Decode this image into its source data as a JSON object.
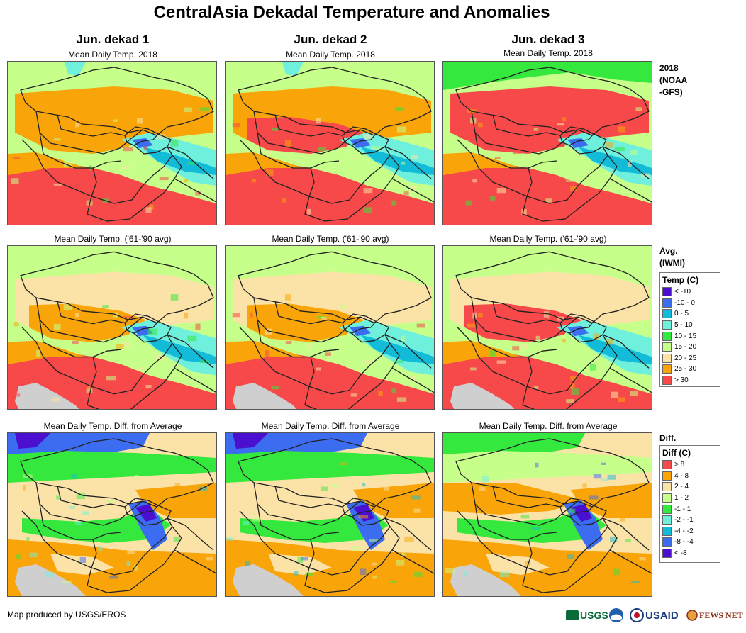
{
  "title": "CentralAsia Dekadal Temperature and Anomalies",
  "columns": [
    {
      "header": "Jun. dekad 1"
    },
    {
      "header": "Jun. dekad 2"
    },
    {
      "header": "Jun. dekad 3"
    }
  ],
  "rows": [
    {
      "subtitle": "Mean Daily Temp. 2018",
      "side_label": [
        "2018",
        "(NOAA",
        "-GFS)"
      ]
    },
    {
      "subtitle": "Mean Daily Temp. ('61-'90 avg)",
      "side_label": [
        "Avg.",
        "(IWMI)"
      ]
    },
    {
      "subtitle": "Mean Daily Temp. Diff. from Average",
      "side_label": [
        "Diff."
      ]
    }
  ],
  "legend_temp": {
    "title": "Temp (C)",
    "items": [
      {
        "label": "< -10",
        "color": "#4b0fcf"
      },
      {
        "label": "-10 - 0",
        "color": "#3c6cf0"
      },
      {
        "label": "0 - 5",
        "color": "#12bcd8"
      },
      {
        "label": "5 - 10",
        "color": "#6ff0dc"
      },
      {
        "label": "10 - 15",
        "color": "#34e83e"
      },
      {
        "label": "15 - 20",
        "color": "#c6ff8a"
      },
      {
        "label": "20 - 25",
        "color": "#fbe3a8"
      },
      {
        "label": "25 - 30",
        "color": "#f9a50a"
      },
      {
        "label": "> 30",
        "color": "#f74949"
      }
    ]
  },
  "legend_diff": {
    "title": "Diff (C)",
    "items": [
      {
        "label": "> 8",
        "color": "#f74949"
      },
      {
        "label": "4 - 8",
        "color": "#f9a50a"
      },
      {
        "label": "2 - 4",
        "color": "#fbe3a8"
      },
      {
        "label": "1 - 2",
        "color": "#c6ff8a"
      },
      {
        "label": "-1 - 1",
        "color": "#34e83e"
      },
      {
        "label": "-2 - -1",
        "color": "#6ff0dc"
      },
      {
        "label": "-4 - -2",
        "color": "#12bcd8"
      },
      {
        "label": "-8 - -4",
        "color": "#3c6cf0"
      },
      {
        "label": "< -8",
        "color": "#4b0fcf"
      }
    ]
  },
  "credit": "Map produced by USGS/EROS",
  "logos": {
    "usgs": "USGS",
    "usaid": "USAID",
    "fewsnet": "FEWS NET"
  },
  "colors": {
    "no_data": "#cfcfcf",
    "border": "#222222"
  }
}
